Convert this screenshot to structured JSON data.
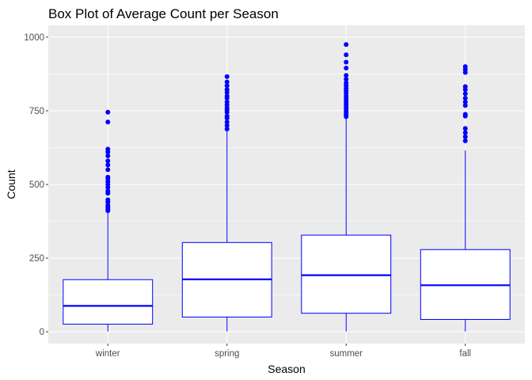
{
  "chart_data": {
    "type": "box",
    "title": "Box Plot of Average Count per Season",
    "xlabel": "Season",
    "ylabel": "Count",
    "ylim": [
      -40,
      1040
    ],
    "yticks": [
      0,
      250,
      500,
      750,
      1000
    ],
    "categories": [
      "winter",
      "spring",
      "summer",
      "fall"
    ],
    "boxes": [
      {
        "category": "winter",
        "min": 1,
        "q1": 26,
        "median": 88,
        "q3": 177,
        "max": 404,
        "outliers": [
          411,
          417,
          423,
          429,
          440,
          448,
          470,
          478,
          490,
          500,
          510,
          520,
          525,
          550,
          566,
          580,
          597,
          610,
          620,
          712,
          745
        ]
      },
      {
        "category": "spring",
        "min": 1,
        "q1": 50,
        "median": 178,
        "q3": 303,
        "max": 680,
        "outliers": [
          688,
          700,
          712,
          725,
          732,
          745,
          752,
          760,
          770,
          780,
          793,
          800,
          812,
          822,
          835,
          848,
          866
        ]
      },
      {
        "category": "summer",
        "min": 1,
        "q1": 63,
        "median": 192,
        "q3": 328,
        "max": 725,
        "outliers": [
          730,
          736,
          742,
          748,
          755,
          762,
          770,
          777,
          785,
          792,
          800,
          810,
          818,
          826,
          835,
          845,
          857,
          870,
          895,
          915,
          940,
          975
        ]
      },
      {
        "category": "fall",
        "min": 1,
        "q1": 42,
        "median": 158,
        "q3": 279,
        "max": 616,
        "outliers": [
          648,
          662,
          676,
          690,
          732,
          738,
          768,
          780,
          793,
          808,
          822,
          832,
          880,
          890,
          900
        ]
      }
    ],
    "colors": {
      "box_stroke": "#0000ff",
      "box_fill": "#ffffff",
      "outlier": "#0000ff",
      "panel": "#ebebeb",
      "grid": "#ffffff"
    },
    "grid": true,
    "legend": "none"
  }
}
